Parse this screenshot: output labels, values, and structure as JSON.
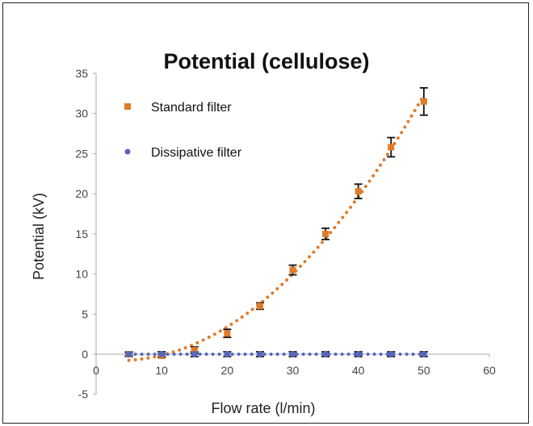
{
  "chart_data": {
    "type": "scatter",
    "title": "Potential (cellulose)",
    "xlabel": "Flow rate (l/min)",
    "ylabel": "Potential (kV)",
    "xlim": [
      0,
      60
    ],
    "ylim": [
      -5,
      35
    ],
    "x_ticks": [
      "0",
      "10",
      "20",
      "30",
      "40",
      "50",
      "60"
    ],
    "y_ticks": [
      "-5",
      "0",
      "5",
      "10",
      "15",
      "20",
      "25",
      "30",
      "35"
    ],
    "grid": false,
    "legend_position": "top-left",
    "series": [
      {
        "name": "Standard filter",
        "color": "#e07b2a",
        "marker": "square",
        "trend": "dotted-polynomial",
        "x": [
          5,
          10,
          15,
          20,
          25,
          30,
          35,
          40,
          45,
          50
        ],
        "y": [
          0,
          -0.2,
          0.5,
          2.6,
          6.0,
          10.5,
          15.0,
          20.3,
          25.8,
          31.5
        ],
        "error": [
          0.2,
          0.2,
          0.4,
          0.5,
          0.4,
          0.6,
          0.7,
          0.9,
          1.2,
          1.7
        ]
      },
      {
        "name": "Dissipative filter",
        "color": "#5566bb",
        "marker": "circle",
        "trend": "dotted-linear",
        "x": [
          5,
          10,
          15,
          20,
          25,
          30,
          35,
          40,
          45,
          50
        ],
        "y": [
          0,
          0,
          0,
          0,
          0,
          0,
          0,
          0,
          0,
          0
        ],
        "error": [
          0.3,
          0.3,
          0.3,
          0.3,
          0.3,
          0.3,
          0.3,
          0.3,
          0.3,
          0.3
        ]
      }
    ]
  }
}
